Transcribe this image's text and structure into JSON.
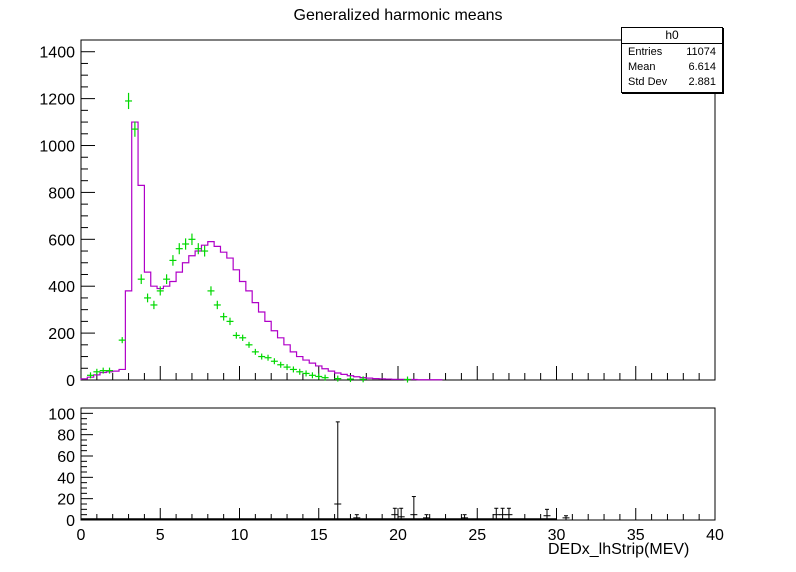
{
  "title": "Generalized harmonic means",
  "stats": {
    "name": "h0",
    "rows": [
      {
        "label": "Entries",
        "value": "11074"
      },
      {
        "label": "Mean",
        "value": "6.614"
      },
      {
        "label": "Std Dev",
        "value": "2.881"
      }
    ]
  },
  "colors": {
    "hist": "#b000c8",
    "points": "#00d800",
    "axis": "#000000",
    "residual": "#000000"
  },
  "chart_data": [
    {
      "type": "histogram",
      "panel": "top",
      "xlim": [
        0,
        40
      ],
      "ylim": [
        0,
        1450
      ],
      "yticks": [
        0,
        200,
        400,
        600,
        800,
        1000,
        1200,
        1400
      ],
      "hist_bin_width": 0.4,
      "hist_x0": 0,
      "hist_values": [
        5,
        12,
        22,
        32,
        35,
        38,
        45,
        380,
        1100,
        830,
        460,
        400,
        390,
        400,
        420,
        460,
        500,
        530,
        550,
        575,
        590,
        570,
        545,
        520,
        470,
        420,
        380,
        330,
        290,
        250,
        210,
        180,
        150,
        120,
        100,
        85,
        72,
        60,
        48,
        38,
        30,
        24,
        18,
        14,
        10,
        8,
        6,
        5,
        4,
        3,
        3,
        2,
        2,
        1,
        1,
        1,
        1
      ],
      "points": [
        {
          "x": 0.6,
          "y": 20
        },
        {
          "x": 1.0,
          "y": 35
        },
        {
          "x": 1.4,
          "y": 40
        },
        {
          "x": 1.8,
          "y": 40
        },
        {
          "x": 2.6,
          "y": 170
        },
        {
          "x": 3.0,
          "y": 1190
        },
        {
          "x": 3.4,
          "y": 1070
        },
        {
          "x": 3.8,
          "y": 430
        },
        {
          "x": 4.2,
          "y": 350
        },
        {
          "x": 4.6,
          "y": 320
        },
        {
          "x": 5.0,
          "y": 380
        },
        {
          "x": 5.4,
          "y": 430
        },
        {
          "x": 5.8,
          "y": 510
        },
        {
          "x": 6.2,
          "y": 560
        },
        {
          "x": 6.6,
          "y": 580
        },
        {
          "x": 7.0,
          "y": 600
        },
        {
          "x": 7.4,
          "y": 560
        },
        {
          "x": 7.8,
          "y": 550
        },
        {
          "x": 8.2,
          "y": 380
        },
        {
          "x": 8.6,
          "y": 320
        },
        {
          "x": 9.0,
          "y": 270
        },
        {
          "x": 9.4,
          "y": 250
        },
        {
          "x": 9.8,
          "y": 190
        },
        {
          "x": 10.2,
          "y": 180
        },
        {
          "x": 10.6,
          "y": 150
        },
        {
          "x": 11.0,
          "y": 120
        },
        {
          "x": 11.4,
          "y": 100
        },
        {
          "x": 11.8,
          "y": 95
        },
        {
          "x": 12.2,
          "y": 80
        },
        {
          "x": 12.6,
          "y": 65
        },
        {
          "x": 13.0,
          "y": 55
        },
        {
          "x": 13.4,
          "y": 45
        },
        {
          "x": 13.8,
          "y": 35
        },
        {
          "x": 14.2,
          "y": 28
        },
        {
          "x": 14.6,
          "y": 20
        },
        {
          "x": 15.0,
          "y": 15
        },
        {
          "x": 15.4,
          "y": 10
        },
        {
          "x": 16.2,
          "y": 6
        },
        {
          "x": 17.0,
          "y": 4
        },
        {
          "x": 17.8,
          "y": 3
        },
        {
          "x": 20.6,
          "y": 2
        }
      ]
    },
    {
      "type": "scatter",
      "panel": "bottom",
      "xlim": [
        0,
        40
      ],
      "ylim": [
        0,
        105
      ],
      "xticks": [
        0,
        5,
        10,
        15,
        20,
        25,
        30,
        35,
        40
      ],
      "yticks": [
        0,
        20,
        40,
        60,
        80,
        100
      ],
      "xlabel": "DEDx_lhStrip(MEV)",
      "points": [
        {
          "x": 16.2,
          "y": 15,
          "err": 77
        },
        {
          "x": 17.4,
          "y": 2,
          "err": 3
        },
        {
          "x": 19.8,
          "y": 5,
          "err": 6
        },
        {
          "x": 20.2,
          "y": 3,
          "err": 8
        },
        {
          "x": 21.0,
          "y": 5,
          "err": 17
        },
        {
          "x": 21.8,
          "y": 2,
          "err": 3
        },
        {
          "x": 26.2,
          "y": 5,
          "err": 6
        },
        {
          "x": 26.6,
          "y": 5,
          "err": 6
        },
        {
          "x": 27.0,
          "y": 5,
          "err": 6
        },
        {
          "x": 29.4,
          "y": 4,
          "err": 6
        },
        {
          "x": 24.2,
          "y": 2,
          "err": 3
        },
        {
          "x": 30.6,
          "y": 2,
          "err": 2
        }
      ]
    }
  ]
}
